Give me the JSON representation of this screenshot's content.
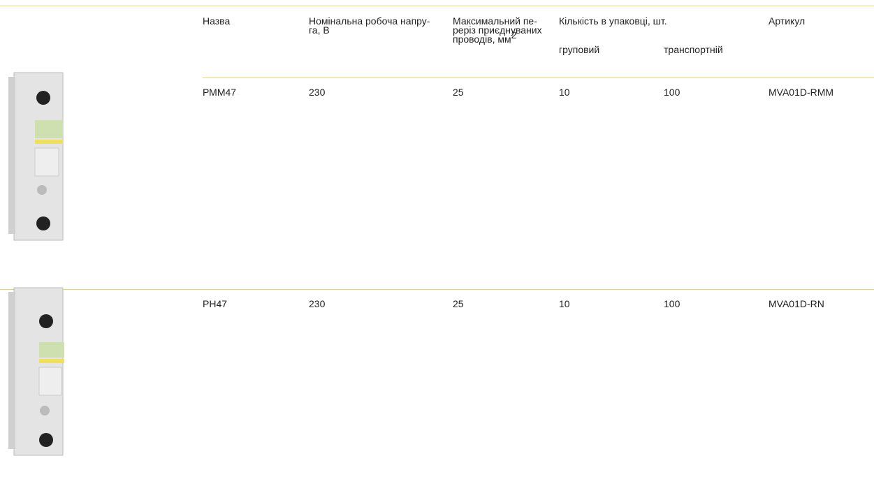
{
  "table": {
    "header": {
      "name": "Назва",
      "voltage": [
        "Номінальна робоча напру-",
        "га, В"
      ],
      "cross_section": [
        "Максимальний пе-",
        "реріз приєднуваних",
        "проводів, мм"
      ],
      "cross_section_sup": "2",
      "quantity": "Кількість в упаковці, шт.",
      "group": "груповий",
      "transport": "транспортній",
      "article": "Артикул"
    },
    "rows": [
      [
        "РММ47",
        "230",
        "25",
        "10",
        "100",
        "MVA01D-RMM"
      ],
      [
        "РН47",
        "230",
        "25",
        "10",
        "100",
        "MVA01D-RN"
      ]
    ]
  }
}
